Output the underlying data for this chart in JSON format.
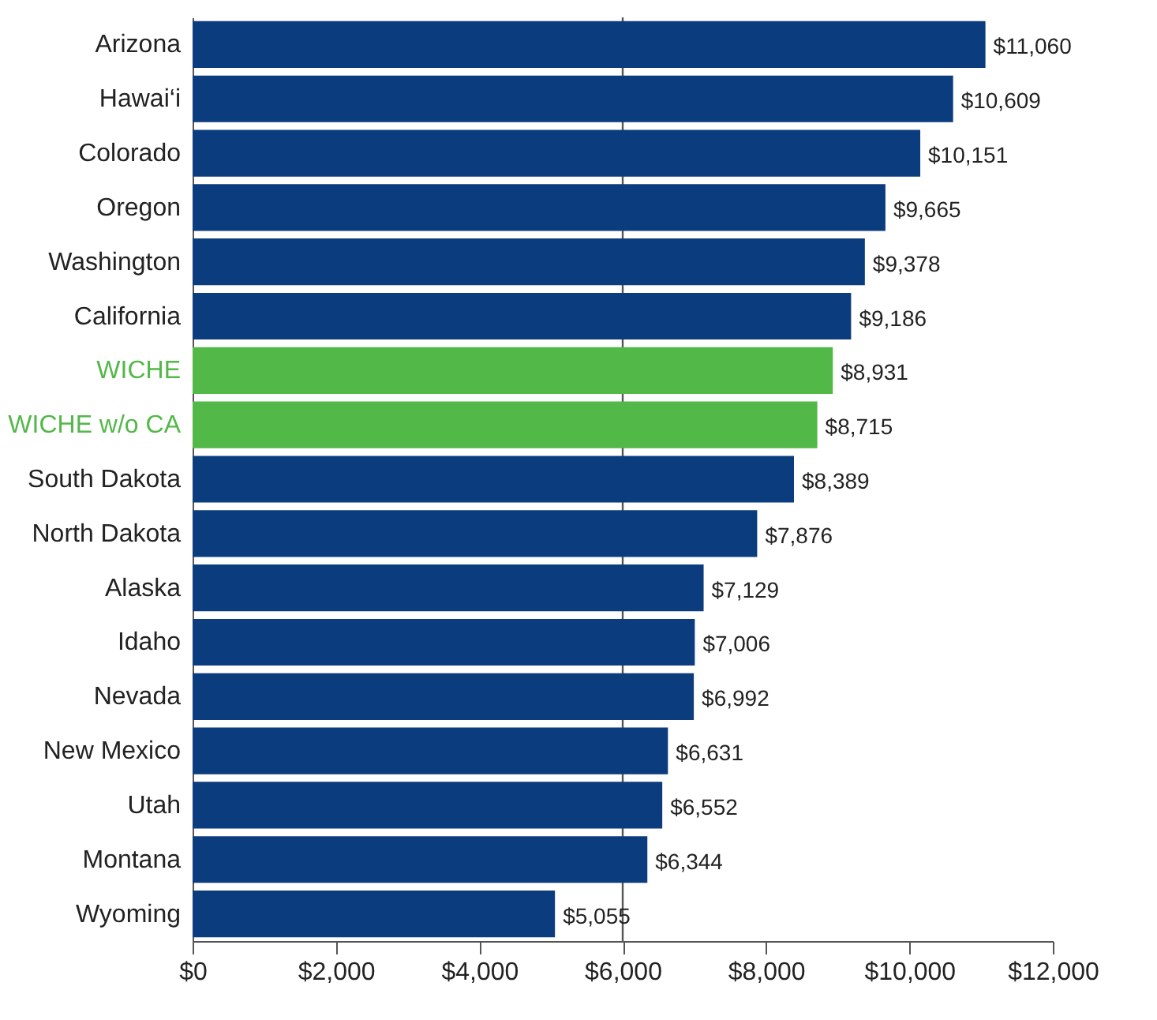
{
  "chart_data": {
    "type": "bar",
    "orientation": "horizontal",
    "categories": [
      "Arizona",
      "Hawai‘i",
      "Colorado",
      "Oregon",
      "Washington",
      "California",
      "WICHE",
      "WICHE w/o CA",
      "South Dakota",
      "North Dakota",
      "Alaska",
      "Idaho",
      "Nevada",
      "New Mexico",
      "Utah",
      "Montana",
      "Wyoming"
    ],
    "values": [
      11060,
      10609,
      10151,
      9665,
      9378,
      9186,
      8931,
      8715,
      8389,
      7876,
      7129,
      7006,
      6992,
      6631,
      6552,
      6344,
      5055
    ],
    "value_labels": [
      "$11,060",
      "$10,609",
      "$10,151",
      "$9,665",
      "$9,378",
      "$9,186",
      "$8,931",
      "$8,715",
      "$8,389",
      "$7,876",
      "$7,129",
      "$7,006",
      "$6,992",
      "$6,631",
      "$6,552",
      "$6,344",
      "$5,055"
    ],
    "color": "#0b3c7d",
    "colors": [
      "#0b3c7d",
      "#0b3c7d",
      "#0b3c7d",
      "#0b3c7d",
      "#0b3c7d",
      "#0b3c7d",
      "#52b848",
      "#52b848",
      "#0b3c7d",
      "#0b3c7d",
      "#0b3c7d",
      "#0b3c7d",
      "#0b3c7d",
      "#0b3c7d",
      "#0b3c7d",
      "#0b3c7d",
      "#0b3c7d"
    ],
    "xlim": [
      0,
      12000
    ],
    "xticks": [
      {
        "value": 0,
        "label": "$0"
      },
      {
        "value": 2000,
        "label": "$2,000"
      },
      {
        "value": 4000,
        "label": "$4,000"
      },
      {
        "value": 6000,
        "label": "$6,000"
      },
      {
        "value": 8000,
        "label": "$8,000"
      },
      {
        "value": 10000,
        "label": "$10,000"
      },
      {
        "value": 12000,
        "label": "$12,000"
      }
    ],
    "ref_lines": [
      {
        "axis": "x",
        "value": 6000,
        "color": "#555555"
      }
    ],
    "grid": false
  }
}
